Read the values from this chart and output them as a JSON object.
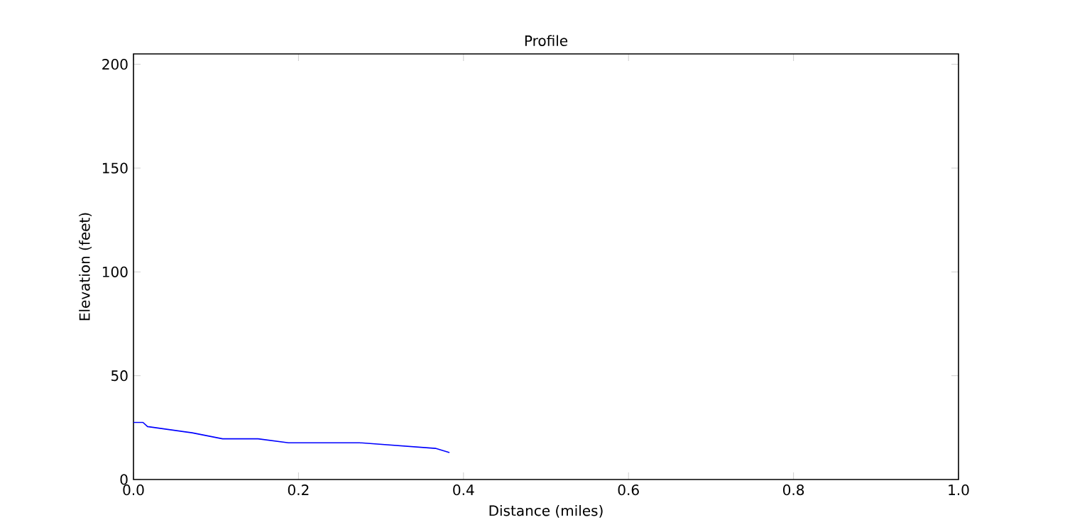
{
  "chart_data": {
    "type": "line",
    "title": "Profile",
    "xlabel": "Distance (miles)",
    "ylabel": "Elevation (feet)",
    "x": [
      0,
      0.0115,
      0.017,
      0.071,
      0.108,
      0.151,
      0.188,
      0.274,
      0.366,
      0.383
    ],
    "values": [
      27.5,
      27.5,
      25.5,
      22.5,
      19.6,
      19.6,
      17.7,
      17.7,
      15,
      13
    ],
    "color": "#0000ff",
    "xlim": [
      0,
      1
    ],
    "ylim": [
      0,
      205
    ],
    "xticks": [
      {
        "value": 0,
        "label": "0.0"
      },
      0.2,
      0.4,
      0.6,
      0.8,
      {
        "value": 1,
        "label": "1.0"
      }
    ],
    "yticks": [
      0,
      50,
      100,
      150,
      200
    ],
    "grid": false
  }
}
